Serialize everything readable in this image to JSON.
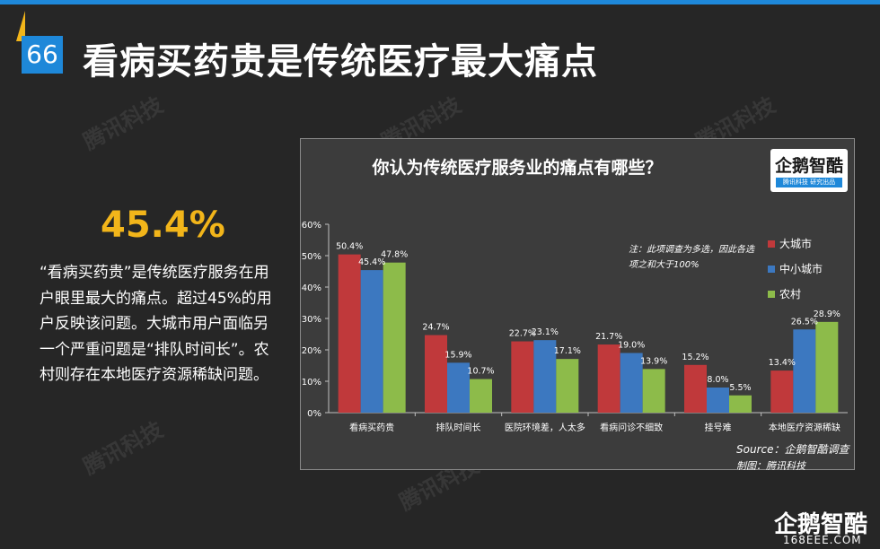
{
  "slide": {
    "number": "66",
    "title": "看病买药贵是传统医疗最大痛点",
    "highlight": "45.4%",
    "description": "“看病买药贵”是传统医疗服务在用户眼里最大的痛点。超过45%的用户反映该问题。大城市用户面临另一个严重问题是“排队时间长”。农村则存在本地医疗资源稀缺问题。",
    "watermark": "腾讯科技"
  },
  "logo": {
    "name": "企鹅智酷",
    "sub": "腾讯科技  研究出品"
  },
  "chart_data": {
    "type": "bar",
    "title": "你认为传统医疗服务业的痛点有哪些？",
    "categories": [
      "看病买药贵",
      "排队时间长",
      "医院环境差，人太多",
      "看病问诊不细致",
      "挂号难",
      "本地医疗资源稀缺"
    ],
    "series": [
      {
        "name": "大城市",
        "color": "#c0393b",
        "values": [
          50.4,
          24.7,
          22.7,
          21.7,
          15.2,
          13.4
        ],
        "labels": [
          "50.4%",
          "24.7%",
          "22.7%",
          "21.7%",
          "15.2%",
          "13.4%"
        ]
      },
      {
        "name": "中小城市",
        "color": "#3c78c0",
        "values": [
          45.4,
          15.9,
          23.1,
          19.0,
          8.0,
          26.5
        ],
        "labels": [
          "45.4%",
          "15.9%",
          "23.1%",
          "19.0%",
          "8.0%",
          "26.5%"
        ]
      },
      {
        "name": "农村",
        "color": "#8dbb4a",
        "values": [
          47.8,
          10.7,
          17.1,
          13.9,
          5.5,
          28.9
        ],
        "labels": [
          "47.8%",
          "10.7%",
          "17.1%",
          "13.9%",
          "5.5%",
          "28.9%"
        ]
      }
    ],
    "ylim": [
      0,
      60
    ],
    "yticks": [
      "0%",
      "10%",
      "20%",
      "30%",
      "40%",
      "50%",
      "60%"
    ],
    "legend_position": "right",
    "note": "注：此项调查为多选，因此各选项之和大于100%",
    "source": "Source：企鹅智酷调查",
    "maker": "制图：腾讯科技"
  },
  "corner": {
    "logo": "企鹅智酷",
    "url": "168EEE.COM"
  }
}
